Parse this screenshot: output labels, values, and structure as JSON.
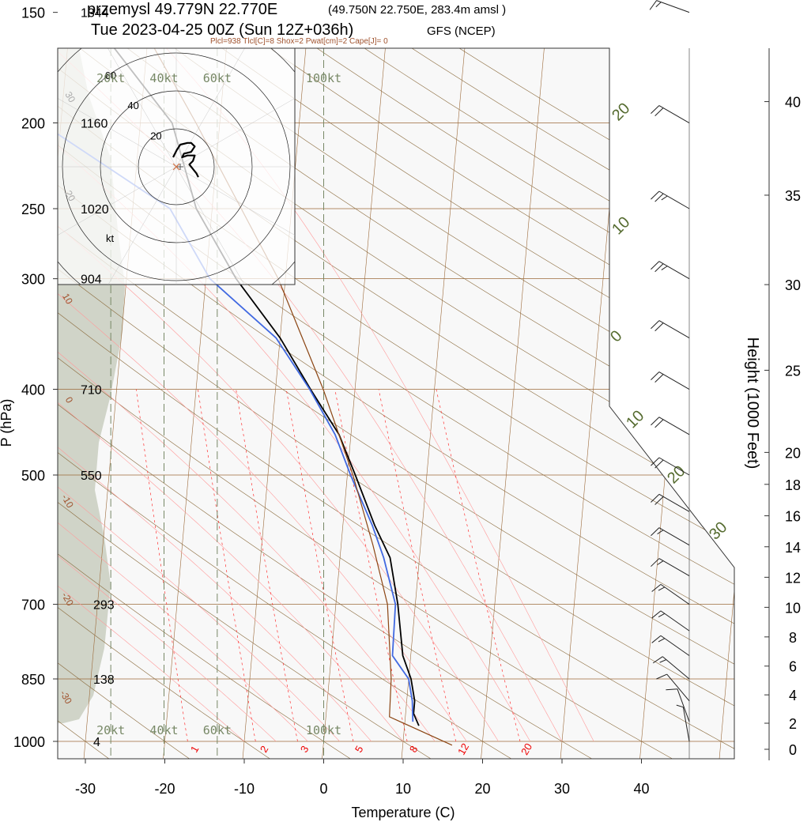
{
  "header": {
    "station": "przemysl 49.779N 22.770E",
    "gridpoint": "(49.750N 22.750E, 283.4m amsl )",
    "time": "Tue 2023-04-25 00Z (Sun 12Z+036h)",
    "model": "GFS (NCEP)",
    "indices": "Plcl=938 Tlcl[C]=8 Shox=2 Pwat[cm]=2 Cape[J]= 0"
  },
  "colors": {
    "plot_bg": "#f8f8f8",
    "isotherm": "#9c6a3a",
    "dry_adiabat": "#8a6a3c",
    "moist_adiabat": "#ff9a9a",
    "mixing_ratio": "#ff3030",
    "temperature": "#000000",
    "dewpoint": "#4169e1",
    "parcel": "#8b4513",
    "terrain_shade": "#d0d4c8",
    "speed_circle": "#778866"
  },
  "chart_data": {
    "type": "skew-t log-p sounding",
    "xlabel": "Temperature (C)",
    "ylabel": "P (hPa)",
    "y2label": "Height (1000 Feet)",
    "x_ticks": [
      "-30",
      "-20",
      "-10",
      "0",
      "10",
      "20",
      "30",
      "40"
    ],
    "x_tick_values": [
      -30,
      -20,
      -10,
      0,
      10,
      20,
      30,
      40
    ],
    "xlim": [
      -34,
      52
    ],
    "ylim_hpa": [
      1050,
      150
    ],
    "pressure_levels": [
      {
        "p": 150,
        "label": "150",
        "height_m": "1344"
      },
      {
        "p": 200,
        "label": "200",
        "height_m": "1160"
      },
      {
        "p": 250,
        "label": "250",
        "height_m": "1020"
      },
      {
        "p": 300,
        "label": "300",
        "height_m": "904"
      },
      {
        "p": 400,
        "label": "400",
        "height_m": "710"
      },
      {
        "p": 500,
        "label": "500",
        "height_m": "550"
      },
      {
        "p": 700,
        "label": "700",
        "height_m": "293"
      },
      {
        "p": 850,
        "label": "850",
        "height_m": "138"
      },
      {
        "p": 1000,
        "label": "1000",
        "height_m": "4"
      }
    ],
    "height_scale_kft": [
      {
        "kft": 0,
        "label": "0"
      },
      {
        "kft": 2,
        "label": "2"
      },
      {
        "kft": 4,
        "label": "4"
      },
      {
        "kft": 6,
        "label": "6"
      },
      {
        "kft": 8,
        "label": "8"
      },
      {
        "kft": 10,
        "label": "10"
      },
      {
        "kft": 12,
        "label": "12"
      },
      {
        "kft": 14,
        "label": "14"
      },
      {
        "kft": 16,
        "label": "16"
      },
      {
        "kft": 18,
        "label": "18"
      },
      {
        "kft": 20,
        "label": "20"
      },
      {
        "kft": 25,
        "label": "25"
      },
      {
        "kft": 30,
        "label": "30"
      },
      {
        "kft": 35,
        "label": "35"
      },
      {
        "kft": 40,
        "label": "40"
      }
    ],
    "isotherm_labels": [
      "20",
      "10",
      "0",
      "10",
      "20",
      "30"
    ],
    "isotherm_label_temps": [
      -20,
      -10,
      0,
      10,
      20,
      30
    ],
    "dry_adiabat_labels": [
      "10",
      "0",
      "-10",
      "-20",
      "-30"
    ],
    "dry_adiabat_label_pressures": [
      300,
      400,
      520,
      680,
      880
    ],
    "mixing_ratio_labels": [
      "1",
      "2",
      "3",
      "5",
      "8",
      "12",
      "20"
    ],
    "mixing_ratio_label_temps": [
      -16,
      -7,
      -2,
      5,
      11.5,
      18,
      26
    ],
    "wind_speed_labels": [
      "20kt",
      "40kt",
      "60kt",
      "100kt"
    ],
    "wind_speed_label_temps": [
      -26.8,
      -20.1,
      -13.4,
      0
    ],
    "hodograph": {
      "ring_labels": [
        "20",
        "40",
        "60"
      ],
      "ring_values": [
        20,
        40,
        60
      ],
      "unit_label": "kt",
      "hodo_ticks": [
        "30",
        "20"
      ],
      "trace_u": [
        0,
        2,
        4,
        8,
        10,
        12,
        10,
        6,
        5,
        8,
        12,
        11,
        9,
        13,
        14
      ],
      "trace_v": [
        0,
        4,
        7,
        8,
        8,
        6,
        3,
        2,
        0,
        1,
        1,
        -2,
        -4,
        -9,
        -11
      ]
    },
    "series": [
      {
        "name": "temperature",
        "points": [
          {
            "p": 960,
            "t": 11.8
          },
          {
            "p": 930,
            "t": 11.0
          },
          {
            "p": 900,
            "t": 11.0
          },
          {
            "p": 850,
            "t": 10.3
          },
          {
            "p": 800,
            "t": 9.0
          },
          {
            "p": 700,
            "t": 7.8
          },
          {
            "p": 620,
            "t": 6.3
          },
          {
            "p": 570,
            "t": 4.0
          },
          {
            "p": 500,
            "t": 1.0
          },
          {
            "p": 450,
            "t": -1.5
          },
          {
            "p": 400,
            "t": -5.6
          },
          {
            "p": 350,
            "t": -10.0
          },
          {
            "p": 300,
            "t": -16.2
          },
          {
            "p": 250,
            "t": -22.0
          },
          {
            "p": 200,
            "t": -26.0
          },
          {
            "p": 150,
            "t": -38.0
          }
        ]
      },
      {
        "name": "dewpoint",
        "points": [
          {
            "p": 950,
            "t": 11.0
          },
          {
            "p": 900,
            "t": 10.7
          },
          {
            "p": 850,
            "t": 10.0
          },
          {
            "p": 800,
            "t": 7.7
          },
          {
            "p": 700,
            "t": 7.5
          },
          {
            "p": 620,
            "t": 5.5
          },
          {
            "p": 570,
            "t": 3.7
          },
          {
            "p": 500,
            "t": 0.4
          },
          {
            "p": 450,
            "t": -2.0
          },
          {
            "p": 400,
            "t": -5.7
          },
          {
            "p": 350,
            "t": -10.5
          },
          {
            "p": 300,
            "t": -19.5
          },
          {
            "p": 250,
            "t": -25.3
          },
          {
            "p": 200,
            "t": -42.5
          },
          {
            "p": 150,
            "t": -65.0
          }
        ]
      },
      {
        "name": "parcel",
        "points": [
          {
            "p": 1010,
            "t": 16.2
          },
          {
            "p": 938,
            "t": 8.0
          },
          {
            "p": 850,
            "t": 7.8
          },
          {
            "p": 700,
            "t": 6.5
          },
          {
            "p": 600,
            "t": 4.0
          },
          {
            "p": 500,
            "t": 0.7
          },
          {
            "p": 400,
            "t": -4.0
          },
          {
            "p": 300,
            "t": -10.9
          },
          {
            "p": 200,
            "t": -23.0
          },
          {
            "p": 150,
            "t": -32.0
          }
        ]
      }
    ],
    "wind_barbs": [
      {
        "p": 150,
        "dir": 290,
        "kt": 15
      },
      {
        "p": 200,
        "dir": 300,
        "kt": 20
      },
      {
        "p": 250,
        "dir": 300,
        "kt": 25
      },
      {
        "p": 300,
        "dir": 300,
        "kt": 25
      },
      {
        "p": 350,
        "dir": 300,
        "kt": 20
      },
      {
        "p": 400,
        "dir": 300,
        "kt": 20
      },
      {
        "p": 450,
        "dir": 300,
        "kt": 20
      },
      {
        "p": 500,
        "dir": 300,
        "kt": 20
      },
      {
        "p": 550,
        "dir": 300,
        "kt": 20
      },
      {
        "p": 600,
        "dir": 300,
        "kt": 15
      },
      {
        "p": 650,
        "dir": 300,
        "kt": 15
      },
      {
        "p": 700,
        "dir": 305,
        "kt": 15
      },
      {
        "p": 750,
        "dir": 305,
        "kt": 15
      },
      {
        "p": 800,
        "dir": 305,
        "kt": 15
      },
      {
        "p": 850,
        "dir": 310,
        "kt": 15
      },
      {
        "p": 900,
        "dir": 320,
        "kt": 10
      },
      {
        "p": 950,
        "dir": 340,
        "kt": 10
      },
      {
        "p": 1000,
        "dir": 350,
        "kt": 5
      }
    ]
  }
}
